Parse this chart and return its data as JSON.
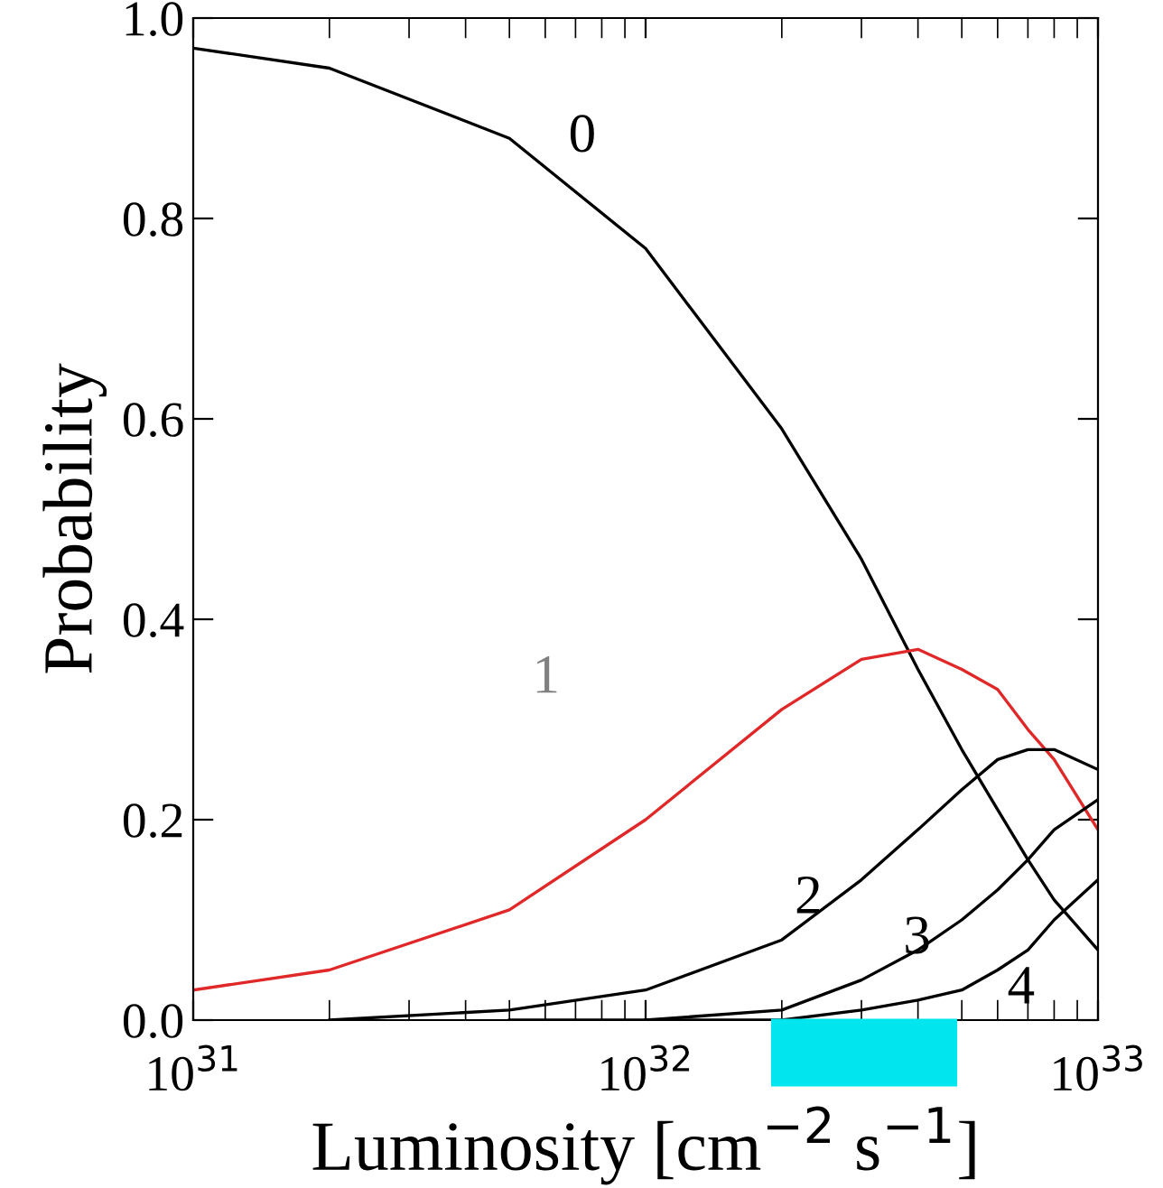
{
  "chart_data": {
    "type": "line",
    "xlabel": "Luminosity [cm$^{−2}$ s$^{−1}$]",
    "ylabel": "Probability",
    "log": "x",
    "x": [
      1e+31,
      2e+31,
      5e+31,
      1e+32,
      2e+32,
      3e+32,
      4e+32,
      5e+32,
      6e+32,
      7e+32,
      8e+32,
      1e+33
    ],
    "series": [
      {
        "name": "0",
        "color": "#000000",
        "values": [
          0.97,
          0.95,
          0.88,
          0.77,
          0.59,
          0.46,
          0.35,
          0.27,
          0.21,
          0.16,
          0.12,
          0.07
        ]
      },
      {
        "name": "1",
        "color": "#e02828",
        "values": [
          0.03,
          0.05,
          0.11,
          0.2,
          0.31,
          0.36,
          0.37,
          0.35,
          0.33,
          0.29,
          0.26,
          0.19
        ]
      },
      {
        "name": "2",
        "color": "#000000",
        "values": [
          null,
          0.0,
          0.01,
          0.03,
          0.08,
          0.14,
          0.19,
          0.23,
          0.26,
          0.27,
          0.27,
          0.25
        ]
      },
      {
        "name": "3",
        "color": "#000000",
        "values": [
          null,
          null,
          0.0,
          0.0,
          0.01,
          0.04,
          0.07,
          0.1,
          0.13,
          0.16,
          0.19,
          0.22
        ]
      },
      {
        "name": "4",
        "color": "#000000",
        "values": [
          null,
          null,
          null,
          0.0,
          0.0,
          0.01,
          0.02,
          0.03,
          0.05,
          0.07,
          0.1,
          0.14
        ]
      }
    ],
    "xlim": [
      1e+31,
      1e+33
    ],
    "xticks": [
      {
        "value": 1e+31,
        "label": "10$^{31}$"
      },
      {
        "value": 1e+32,
        "label": "10$^{32}$"
      },
      {
        "value": 1e+33,
        "label": "10$^{33}$"
      }
    ],
    "ylim": [
      0,
      1
    ],
    "yticks": [
      {
        "value": 0,
        "label": "0.0"
      },
      {
        "value": 0.2,
        "label": "0.2"
      },
      {
        "value": 0.4,
        "label": "0.4"
      },
      {
        "value": 0.6,
        "label": "0.6"
      },
      {
        "value": 0.8,
        "label": "0.8"
      },
      {
        "value": 1,
        "label": "1.0"
      }
    ],
    "grid": false,
    "legend": false
  }
}
